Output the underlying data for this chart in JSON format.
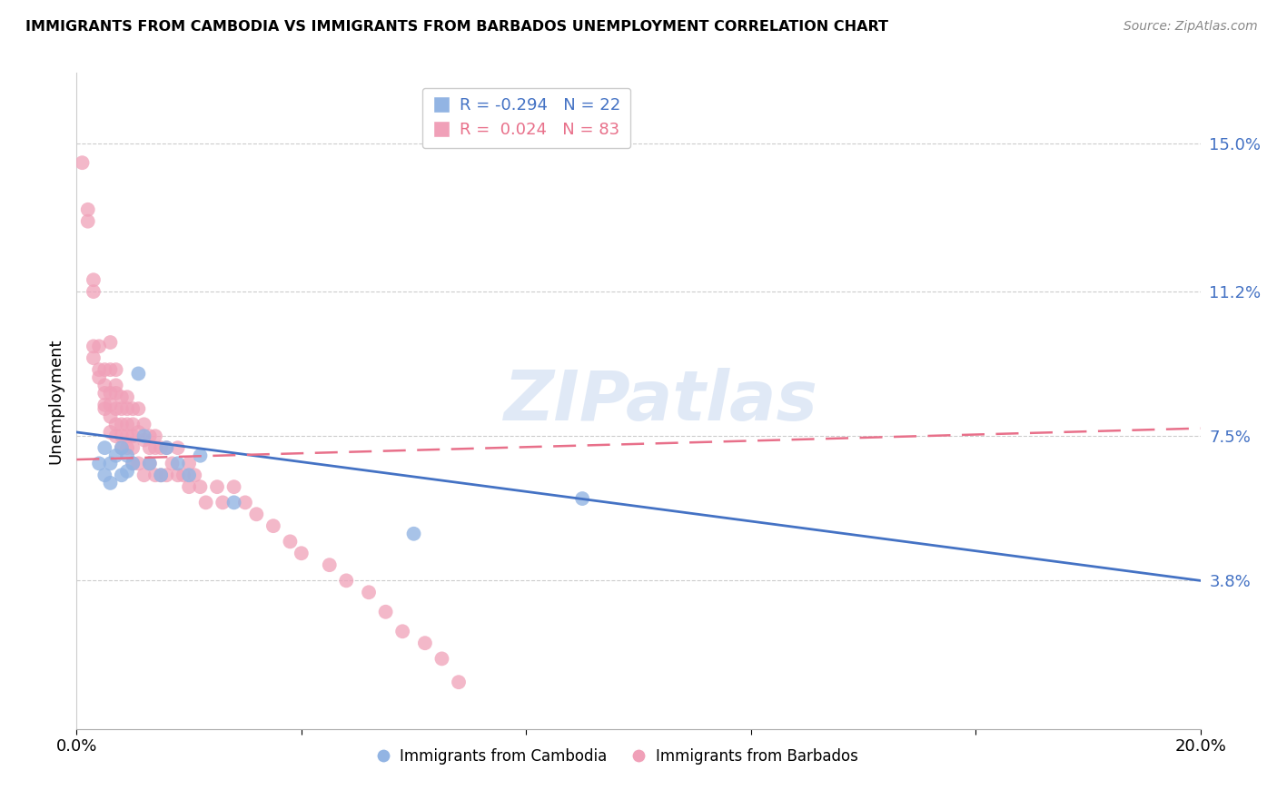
{
  "title": "IMMIGRANTS FROM CAMBODIA VS IMMIGRANTS FROM BARBADOS UNEMPLOYMENT CORRELATION CHART",
  "source": "Source: ZipAtlas.com",
  "ylabel": "Unemployment",
  "yticks": [
    0.038,
    0.075,
    0.112,
    0.15
  ],
  "ytick_labels": [
    "3.8%",
    "7.5%",
    "11.2%",
    "15.0%"
  ],
  "xmin": 0.0,
  "xmax": 0.2,
  "ymin": 0.0,
  "ymax": 0.168,
  "legend_r_cambodia": "-0.294",
  "legend_n_cambodia": "22",
  "legend_r_barbados": "0.024",
  "legend_n_barbados": "83",
  "color_cambodia": "#92b4e3",
  "color_barbados": "#f0a0b8",
  "line_color_cambodia": "#4472c4",
  "line_color_barbados": "#e8708a",
  "watermark": "ZIPatlas",
  "cambodia_x": [
    0.004,
    0.005,
    0.005,
    0.006,
    0.006,
    0.007,
    0.008,
    0.008,
    0.009,
    0.009,
    0.01,
    0.011,
    0.012,
    0.013,
    0.015,
    0.016,
    0.018,
    0.02,
    0.022,
    0.028,
    0.06,
    0.09
  ],
  "cambodia_y": [
    0.068,
    0.065,
    0.072,
    0.063,
    0.068,
    0.07,
    0.065,
    0.072,
    0.066,
    0.07,
    0.068,
    0.091,
    0.075,
    0.068,
    0.065,
    0.072,
    0.068,
    0.065,
    0.07,
    0.058,
    0.05,
    0.059
  ],
  "barbados_x": [
    0.001,
    0.002,
    0.002,
    0.003,
    0.003,
    0.003,
    0.003,
    0.004,
    0.004,
    0.004,
    0.005,
    0.005,
    0.005,
    0.005,
    0.005,
    0.006,
    0.006,
    0.006,
    0.006,
    0.006,
    0.006,
    0.007,
    0.007,
    0.007,
    0.007,
    0.007,
    0.007,
    0.008,
    0.008,
    0.008,
    0.008,
    0.008,
    0.009,
    0.009,
    0.009,
    0.009,
    0.009,
    0.01,
    0.01,
    0.01,
    0.01,
    0.01,
    0.011,
    0.011,
    0.011,
    0.012,
    0.012,
    0.012,
    0.013,
    0.013,
    0.013,
    0.014,
    0.014,
    0.014,
    0.015,
    0.015,
    0.016,
    0.016,
    0.017,
    0.018,
    0.018,
    0.019,
    0.02,
    0.02,
    0.021,
    0.022,
    0.023,
    0.025,
    0.026,
    0.028,
    0.03,
    0.032,
    0.035,
    0.038,
    0.04,
    0.045,
    0.048,
    0.052,
    0.055,
    0.058,
    0.062,
    0.065,
    0.068
  ],
  "barbados_y": [
    0.145,
    0.133,
    0.13,
    0.115,
    0.112,
    0.098,
    0.095,
    0.098,
    0.092,
    0.09,
    0.092,
    0.088,
    0.086,
    0.083,
    0.082,
    0.099,
    0.092,
    0.086,
    0.083,
    0.08,
    0.076,
    0.092,
    0.088,
    0.086,
    0.082,
    0.078,
    0.075,
    0.085,
    0.082,
    0.078,
    0.075,
    0.072,
    0.085,
    0.082,
    0.078,
    0.075,
    0.072,
    0.082,
    0.078,
    0.075,
    0.072,
    0.068,
    0.082,
    0.076,
    0.068,
    0.078,
    0.074,
    0.065,
    0.075,
    0.072,
    0.068,
    0.075,
    0.072,
    0.065,
    0.072,
    0.065,
    0.072,
    0.065,
    0.068,
    0.072,
    0.065,
    0.065,
    0.068,
    0.062,
    0.065,
    0.062,
    0.058,
    0.062,
    0.058,
    0.062,
    0.058,
    0.055,
    0.052,
    0.048,
    0.045,
    0.042,
    0.038,
    0.035,
    0.03,
    0.025,
    0.022,
    0.018,
    0.012
  ],
  "trendline_cam_x0": 0.0,
  "trendline_cam_x1": 0.2,
  "trendline_cam_y0": 0.076,
  "trendline_cam_y1": 0.038,
  "trendline_bar_x0": 0.0,
  "trendline_bar_x1": 0.2,
  "trendline_bar_y0": 0.069,
  "trendline_bar_y1": 0.077
}
